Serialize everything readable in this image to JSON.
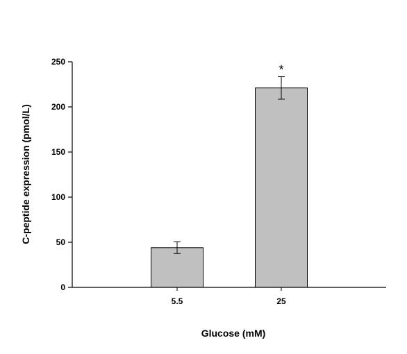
{
  "chart_data": {
    "type": "bar",
    "title": "",
    "xlabel": "Glucose (mM)",
    "ylabel": "C-peptide expression (pmol/L)",
    "categories": [
      "5.5",
      "25"
    ],
    "series": [
      {
        "values": [
          44,
          221
        ],
        "error": [
          6.5,
          12.5
        ],
        "color": "#c0c0c0"
      }
    ],
    "annotations": [
      "",
      "*"
    ],
    "ylim": [
      0,
      250
    ],
    "yticks": [
      0,
      50,
      100,
      150,
      200,
      250
    ],
    "grid": false,
    "legend": "none"
  }
}
